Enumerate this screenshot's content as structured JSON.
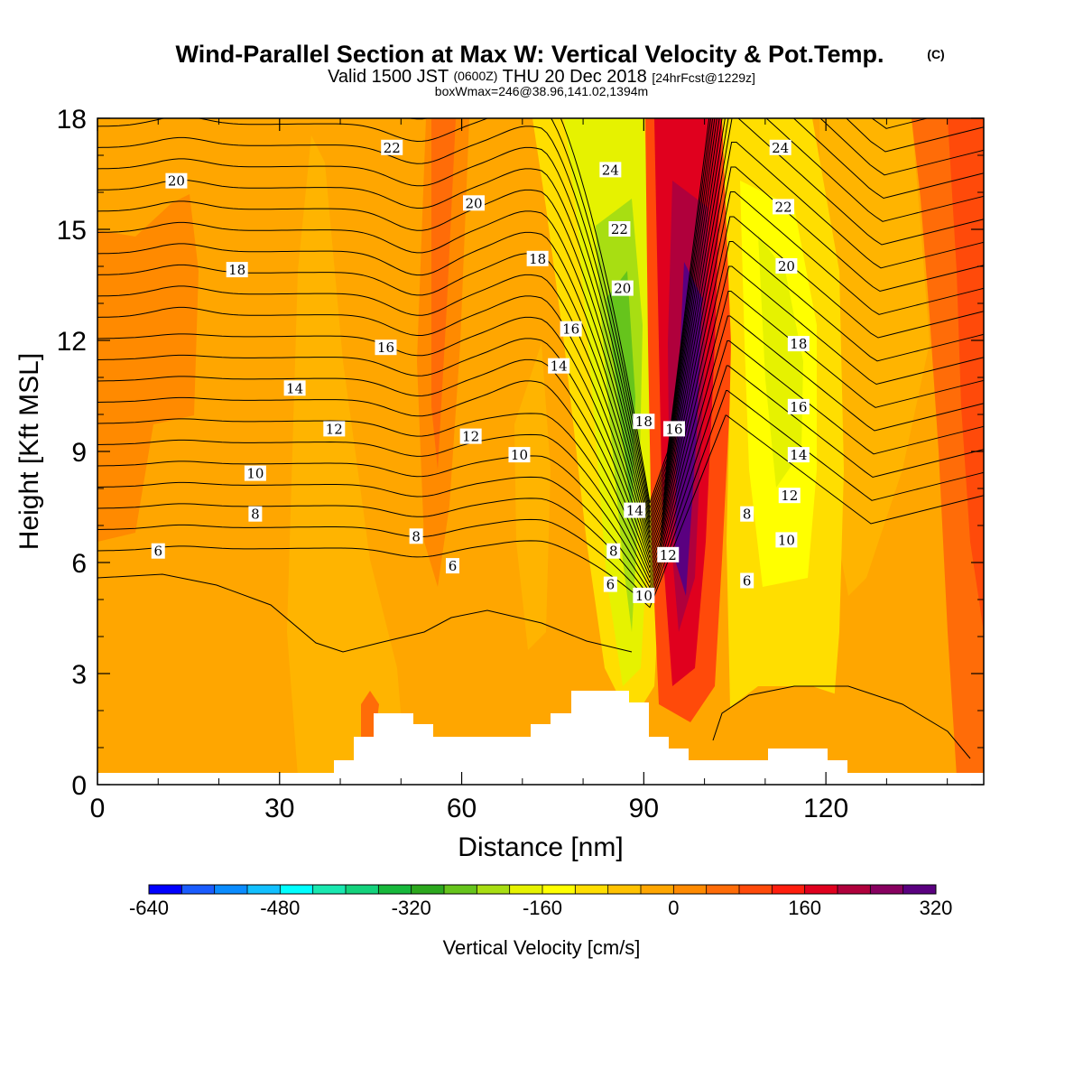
{
  "title": {
    "main": "Wind-Parallel Section at Max W: Vertical Velocity & Pot.Temp.",
    "copyright": "(C)",
    "valid_prefix": "Valid 1500 JST",
    "valid_z": "(0600Z)",
    "valid_date": "THU 20 Dec 2018",
    "forecast": "[24hrFcst@1229z]",
    "box": "boxWmax=246@38.96,141.02,1394m"
  },
  "chart_data": {
    "type": "heatmap",
    "xlabel": "Distance [nm]",
    "ylabel": "Height [Kft MSL]",
    "xlim": [
      0,
      146
    ],
    "ylim": [
      0,
      18
    ],
    "x_ticks": [
      0,
      30,
      60,
      90,
      120
    ],
    "y_ticks": [
      0,
      3,
      6,
      9,
      12,
      15,
      18
    ],
    "colorbar": {
      "title": "Vertical Velocity [cm/s]",
      "labels": [
        -640,
        -480,
        -320,
        -160,
        0,
        160,
        320
      ],
      "colors": [
        "#0000ff",
        "#1a5cff",
        "#0a8cff",
        "#12c0ff",
        "#00ffff",
        "#19e8b0",
        "#13d27c",
        "#17b83c",
        "#2ca81e",
        "#66c41c",
        "#a8de12",
        "#e6f200",
        "#ffff00",
        "#ffde00",
        "#ffc200",
        "#ffa600",
        "#ff8a00",
        "#ff6c08",
        "#ff4a0a",
        "#ff1e0e",
        "#e0001e",
        "#b0003c",
        "#880060",
        "#5a0080"
      ]
    },
    "theta_contour_labels": [
      {
        "value": "20",
        "x": 13,
        "y": 16.3
      },
      {
        "value": "18",
        "x": 23,
        "y": 13.9
      },
      {
        "value": "16",
        "x": 47.5,
        "y": 11.8
      },
      {
        "value": "14",
        "x": 32.5,
        "y": 10.7
      },
      {
        "value": "12",
        "x": 39,
        "y": 9.6
      },
      {
        "value": "10",
        "x": 26,
        "y": 8.4
      },
      {
        "value": "8",
        "x": 26,
        "y": 7.3
      },
      {
        "value": "6",
        "x": 10,
        "y": 6.3
      },
      {
        "value": "22",
        "x": 48.5,
        "y": 17.2
      },
      {
        "value": "20",
        "x": 62,
        "y": 15.7
      },
      {
        "value": "18",
        "x": 72.5,
        "y": 14.2
      },
      {
        "value": "16",
        "x": 78,
        "y": 12.3
      },
      {
        "value": "14",
        "x": 76,
        "y": 11.3
      },
      {
        "value": "12",
        "x": 61.5,
        "y": 9.4
      },
      {
        "value": "10",
        "x": 69.5,
        "y": 8.9
      },
      {
        "value": "8",
        "x": 52.5,
        "y": 6.7
      },
      {
        "value": "6",
        "x": 58.5,
        "y": 5.9
      },
      {
        "value": "24",
        "x": 84.5,
        "y": 16.6
      },
      {
        "value": "22",
        "x": 86,
        "y": 15.0
      },
      {
        "value": "20",
        "x": 86.5,
        "y": 13.4
      },
      {
        "value": "18",
        "x": 90,
        "y": 9.8
      },
      {
        "value": "14",
        "x": 88.5,
        "y": 7.4
      },
      {
        "value": "8",
        "x": 85,
        "y": 6.3
      },
      {
        "value": "6",
        "x": 84.5,
        "y": 5.4
      },
      {
        "value": "10",
        "x": 90,
        "y": 5.1
      },
      {
        "value": "16",
        "x": 95,
        "y": 9.6
      },
      {
        "value": "12",
        "x": 94,
        "y": 6.2
      },
      {
        "value": "24",
        "x": 112.5,
        "y": 17.2
      },
      {
        "value": "22",
        "x": 113,
        "y": 15.6
      },
      {
        "value": "20",
        "x": 113.5,
        "y": 14.0
      },
      {
        "value": "18",
        "x": 115.5,
        "y": 11.9
      },
      {
        "value": "16",
        "x": 115.5,
        "y": 10.2
      },
      {
        "value": "14",
        "x": 115.5,
        "y": 8.9
      },
      {
        "value": "12",
        "x": 114,
        "y": 7.8
      },
      {
        "value": "10",
        "x": 113.5,
        "y": 6.6
      },
      {
        "value": "8",
        "x": 107,
        "y": 7.3
      },
      {
        "value": "6",
        "x": 107,
        "y": 5.5
      }
    ]
  }
}
